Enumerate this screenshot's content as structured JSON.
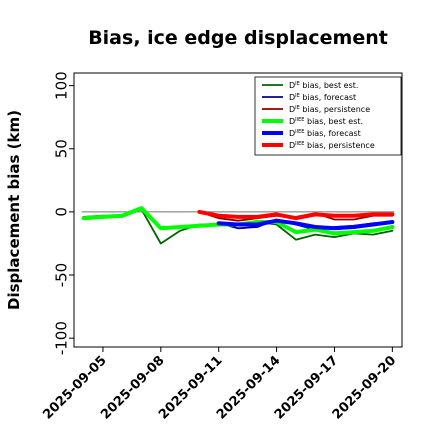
{
  "chart_data": {
    "type": "line",
    "title": "Bias, ice edge displacement",
    "ylabel": "Displacement bias (km)",
    "xlabel": "",
    "ylim": [
      -107,
      110
    ],
    "yticks": [
      100,
      50,
      0,
      -50,
      -100
    ],
    "xlim_days": [
      0.5,
      17.5
    ],
    "xticks": [
      "2025-09-05",
      "2025-09-08",
      "2025-09-11",
      "2025-09-14",
      "2025-09-17",
      "2025-09-20"
    ],
    "highlight_tick": "2025-09-11",
    "highlight_color": "#228b22",
    "grid": false,
    "zero_line": true,
    "legend_position": "top-right",
    "x": [
      "2025-09-04",
      "2025-09-05",
      "2025-09-06",
      "2025-09-07",
      "2025-09-08",
      "2025-09-09",
      "2025-09-10",
      "2025-09-11",
      "2025-09-12",
      "2025-09-13",
      "2025-09-14",
      "2025-09-15",
      "2025-09-16",
      "2025-09-17",
      "2025-09-18",
      "2025-09-19",
      "2025-09-20"
    ],
    "series": [
      {
        "name_main": "D",
        "name_sup": "IE",
        "name_rest": " bias, best est.",
        "color": "#006400",
        "width": 1.8,
        "values": [
          -4,
          -3,
          -4,
          2,
          -25,
          -15,
          -10,
          -10,
          -10,
          -8,
          -10,
          -22,
          -18,
          -20,
          -17,
          -18,
          -15
        ]
      },
      {
        "name_main": "D",
        "name_sup": "IE",
        "name_rest": " bias, forecast",
        "color": "#00008b",
        "width": 1.8,
        "values": [
          null,
          null,
          null,
          null,
          null,
          null,
          null,
          -9,
          -13,
          -12,
          -6,
          -10,
          -14,
          -12,
          -11,
          -9,
          -8
        ]
      },
      {
        "name_main": "D",
        "name_sup": "IE",
        "name_rest": " bias, persistence",
        "color": "#8b0000",
        "width": 1.8,
        "values": [
          null,
          null,
          null,
          null,
          null,
          null,
          0,
          -5,
          -7,
          -5,
          -3,
          -4,
          -1,
          -6,
          -6,
          -3,
          -3
        ]
      },
      {
        "name_main": "D",
        "name_sup": "IIEE",
        "name_rest": " bias, best est.",
        "color": "#00ff00",
        "width": 4,
        "values": [
          -5,
          -4,
          -3,
          3,
          -13,
          -12,
          -11,
          -10,
          -10,
          -8,
          -8,
          -16,
          -14,
          -17,
          -16,
          -15,
          -12
        ]
      },
      {
        "name_main": "D",
        "name_sup": "IIEE",
        "name_rest": " bias, forecast",
        "color": "#0000ff",
        "width": 4,
        "values": [
          null,
          null,
          null,
          null,
          null,
          null,
          null,
          -9,
          -10,
          -10,
          -7,
          -9,
          -12,
          -13,
          -12,
          -10,
          -8
        ]
      },
      {
        "name_main": "D",
        "name_sup": "IIEE",
        "name_rest": " bias, persistence",
        "color": "#ff0000",
        "width": 4,
        "values": [
          null,
          null,
          null,
          null,
          null,
          null,
          0,
          -3,
          -4,
          -4,
          -2,
          -5,
          -2,
          -3,
          -3,
          -2,
          -2
        ]
      }
    ]
  }
}
